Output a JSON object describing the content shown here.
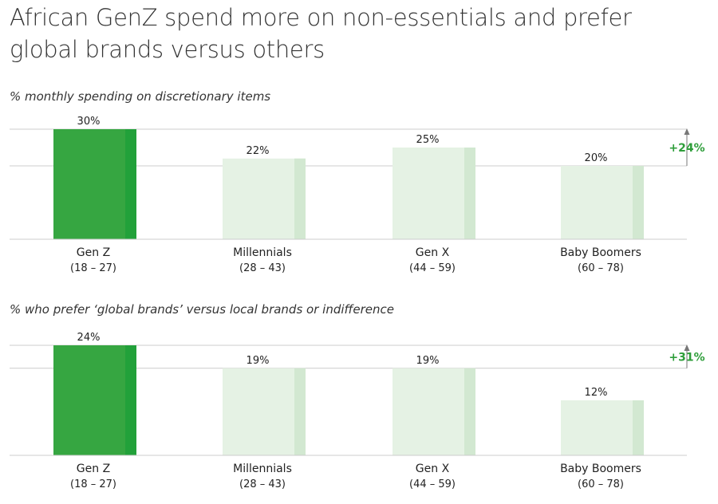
{
  "title": "African GenZ spend more on non-essentials and prefer global brands versus others",
  "colors": {
    "highlight_bar": "#36a641",
    "highlight_bar_shade": "#22a13a",
    "muted_bar": "#e5f2e4",
    "muted_bar_shade": "#d2e8d1",
    "delta_text": "#2e9e3a",
    "axis": "#cccccc"
  },
  "chart_data": [
    {
      "type": "bar",
      "title": "% monthly spending on discretionary items",
      "categories": [
        "Gen Z",
        "Millennials",
        "Gen X",
        "Baby Boomers"
      ],
      "category_ranges": [
        "(18 – 27)",
        "(28 – 43)",
        "(44 – 59)",
        "(60 – 78)"
      ],
      "values": [
        30,
        22,
        25,
        20
      ],
      "value_labels": [
        "30%",
        "22%",
        "25%",
        "20%"
      ],
      "highlight_index": 0,
      "ylim": [
        0,
        30
      ],
      "reference_value": 20,
      "delta_label": "+24%",
      "grid": true
    },
    {
      "type": "bar",
      "title": "% who prefer ‘global brands’  versus local brands or indifference",
      "categories": [
        "Gen Z",
        "Millennials",
        "Gen X",
        "Baby Boomers"
      ],
      "category_ranges": [
        "(18 – 27)",
        "(28 – 43)",
        "(44 – 59)",
        "(60 – 78)"
      ],
      "values": [
        24,
        19,
        19,
        12
      ],
      "value_labels": [
        "24%",
        "19%",
        "19%",
        "12%"
      ],
      "highlight_index": 0,
      "ylim": [
        0,
        24
      ],
      "reference_value": 19,
      "delta_label": "+31%",
      "grid": true
    }
  ]
}
